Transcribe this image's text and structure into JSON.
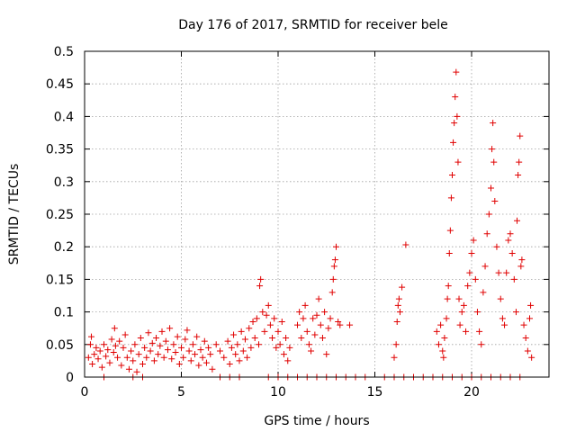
{
  "chart_data": {
    "type": "scatter",
    "title": "Day 176 of 2017, SRMTID for receiver bele",
    "xlabel": "GPS time / hours",
    "ylabel": "SRMTID / TECUs",
    "xlim": [
      0,
      24
    ],
    "ylim": [
      0,
      0.5
    ],
    "x_ticks": [
      0,
      5,
      10,
      15,
      20
    ],
    "y_ticks": [
      0,
      0.05,
      0.1,
      0.15,
      0.2,
      0.25,
      0.3,
      0.35,
      0.4,
      0.45,
      0.5
    ],
    "x_tick_labels": [
      "0",
      "5",
      "10",
      "15",
      "20"
    ],
    "y_tick_labels": [
      "0",
      "0.05",
      "0.1",
      "0.15",
      "0.2",
      "0.25",
      "0.3",
      "0.35",
      "0.4",
      "0.45",
      "0.5"
    ],
    "grid": true,
    "marker": "+",
    "color": "#e00000",
    "series": [
      {
        "name": "SRMTID",
        "points": [
          [
            0.2,
            0.03
          ],
          [
            0.3,
            0.05
          ],
          [
            0.35,
            0.062
          ],
          [
            0.4,
            0.02
          ],
          [
            0.5,
            0.035
          ],
          [
            0.6,
            0.045
          ],
          [
            0.7,
            0.028
          ],
          [
            0.8,
            0.04
          ],
          [
            0.9,
            0.015
          ],
          [
            1.0,
            0.05
          ],
          [
            1.1,
            0.032
          ],
          [
            1.2,
            0.042
          ],
          [
            1.3,
            0.022
          ],
          [
            1.4,
            0.058
          ],
          [
            1.5,
            0.038
          ],
          [
            1.55,
            0.075
          ],
          [
            1.6,
            0.048
          ],
          [
            1.7,
            0.03
          ],
          [
            1.8,
            0.055
          ],
          [
            1.9,
            0.018
          ],
          [
            2.0,
            0.045
          ],
          [
            2.1,
            0.065
          ],
          [
            2.2,
            0.03
          ],
          [
            2.3,
            0.012
          ],
          [
            2.4,
            0.04
          ],
          [
            2.5,
            0.025
          ],
          [
            2.6,
            0.05
          ],
          [
            2.7,
            0.008
          ],
          [
            2.8,
            0.035
          ],
          [
            2.9,
            0.06
          ],
          [
            3.0,
            0.02
          ],
          [
            3.1,
            0.045
          ],
          [
            3.2,
            0.03
          ],
          [
            3.3,
            0.068
          ],
          [
            3.4,
            0.04
          ],
          [
            3.5,
            0.052
          ],
          [
            3.6,
            0.025
          ],
          [
            3.7,
            0.06
          ],
          [
            3.8,
            0.035
          ],
          [
            3.9,
            0.048
          ],
          [
            4.0,
            0.07
          ],
          [
            4.1,
            0.03
          ],
          [
            4.2,
            0.055
          ],
          [
            4.3,
            0.042
          ],
          [
            4.4,
            0.075
          ],
          [
            4.5,
            0.028
          ],
          [
            4.6,
            0.05
          ],
          [
            4.7,
            0.038
          ],
          [
            4.8,
            0.062
          ],
          [
            4.9,
            0.02
          ],
          [
            5.0,
            0.045
          ],
          [
            5.1,
            0.03
          ],
          [
            5.2,
            0.058
          ],
          [
            5.3,
            0.072
          ],
          [
            5.4,
            0.04
          ],
          [
            5.5,
            0.025
          ],
          [
            5.6,
            0.05
          ],
          [
            5.7,
            0.035
          ],
          [
            5.8,
            0.062
          ],
          [
            5.9,
            0.018
          ],
          [
            6.0,
            0.042
          ],
          [
            6.1,
            0.03
          ],
          [
            6.2,
            0.055
          ],
          [
            6.3,
            0.022
          ],
          [
            6.4,
            0.045
          ],
          [
            6.5,
            0.035
          ],
          [
            6.6,
            0.012
          ],
          [
            6.8,
            0.05
          ],
          [
            7.0,
            0.04
          ],
          [
            7.2,
            0.03
          ],
          [
            7.4,
            0.055
          ],
          [
            7.5,
            0.02
          ],
          [
            7.6,
            0.045
          ],
          [
            7.7,
            0.065
          ],
          [
            7.8,
            0.035
          ],
          [
            7.9,
            0.05
          ],
          [
            8.0,
            0.025
          ],
          [
            8.1,
            0.07
          ],
          [
            8.2,
            0.04
          ],
          [
            8.3,
            0.058
          ],
          [
            8.4,
            0.03
          ],
          [
            8.5,
            0.075
          ],
          [
            8.6,
            0.045
          ],
          [
            8.7,
            0.085
          ],
          [
            8.8,
            0.06
          ],
          [
            8.9,
            0.09
          ],
          [
            9.0,
            0.05
          ],
          [
            9.05,
            0.14
          ],
          [
            9.1,
            0.15
          ],
          [
            9.2,
            0.1
          ],
          [
            9.3,
            0.07
          ],
          [
            9.4,
            0.095
          ],
          [
            9.5,
            0.11
          ],
          [
            9.6,
            0.08
          ],
          [
            9.7,
            0.06
          ],
          [
            9.8,
            0.09
          ],
          [
            9.9,
            0.045
          ],
          [
            10.0,
            0.07
          ],
          [
            10.1,
            0.05
          ],
          [
            10.2,
            0.085
          ],
          [
            10.3,
            0.035
          ],
          [
            10.4,
            0.06
          ],
          [
            10.5,
            0.025
          ],
          [
            10.6,
            0.045
          ],
          [
            11.0,
            0.08
          ],
          [
            11.1,
            0.1
          ],
          [
            11.2,
            0.06
          ],
          [
            11.3,
            0.09
          ],
          [
            11.4,
            0.11
          ],
          [
            11.5,
            0.07
          ],
          [
            11.6,
            0.05
          ],
          [
            11.7,
            0.04
          ],
          [
            11.8,
            0.09
          ],
          [
            11.9,
            0.065
          ],
          [
            12.0,
            0.095
          ],
          [
            12.1,
            0.12
          ],
          [
            12.2,
            0.08
          ],
          [
            12.3,
            0.06
          ],
          [
            12.4,
            0.1
          ],
          [
            12.5,
            0.035
          ],
          [
            12.6,
            0.075
          ],
          [
            12.7,
            0.09
          ],
          [
            12.8,
            0.13
          ],
          [
            12.85,
            0.15
          ],
          [
            12.9,
            0.17
          ],
          [
            12.95,
            0.18
          ],
          [
            13.0,
            0.2
          ],
          [
            13.1,
            0.085
          ],
          [
            13.2,
            0.08
          ],
          [
            13.7,
            0.08
          ],
          [
            16.0,
            0.03
          ],
          [
            16.1,
            0.05
          ],
          [
            16.15,
            0.085
          ],
          [
            16.2,
            0.11
          ],
          [
            16.25,
            0.12
          ],
          [
            16.3,
            0.1
          ],
          [
            16.4,
            0.138
          ],
          [
            16.6,
            0.203
          ],
          [
            18.2,
            0.07
          ],
          [
            18.3,
            0.05
          ],
          [
            18.4,
            0.08
          ],
          [
            18.5,
            0.04
          ],
          [
            18.55,
            0.03
          ],
          [
            18.6,
            0.06
          ],
          [
            18.7,
            0.09
          ],
          [
            18.75,
            0.12
          ],
          [
            18.8,
            0.14
          ],
          [
            18.85,
            0.19
          ],
          [
            18.9,
            0.225
          ],
          [
            18.95,
            0.275
          ],
          [
            19.0,
            0.31
          ],
          [
            19.05,
            0.36
          ],
          [
            19.1,
            0.39
          ],
          [
            19.15,
            0.43
          ],
          [
            19.2,
            0.468
          ],
          [
            19.25,
            0.4
          ],
          [
            19.3,
            0.33
          ],
          [
            19.35,
            0.12
          ],
          [
            19.4,
            0.08
          ],
          [
            19.5,
            0.1
          ],
          [
            19.6,
            0.11
          ],
          [
            19.7,
            0.07
          ],
          [
            19.8,
            0.14
          ],
          [
            19.9,
            0.16
          ],
          [
            20.0,
            0.19
          ],
          [
            20.1,
            0.21
          ],
          [
            20.2,
            0.15
          ],
          [
            20.3,
            0.1
          ],
          [
            20.4,
            0.07
          ],
          [
            20.5,
            0.05
          ],
          [
            20.6,
            0.13
          ],
          [
            20.7,
            0.17
          ],
          [
            20.8,
            0.22
          ],
          [
            20.9,
            0.25
          ],
          [
            21.0,
            0.29
          ],
          [
            21.05,
            0.35
          ],
          [
            21.1,
            0.39
          ],
          [
            21.15,
            0.33
          ],
          [
            21.2,
            0.27
          ],
          [
            21.3,
            0.2
          ],
          [
            21.4,
            0.16
          ],
          [
            21.5,
            0.12
          ],
          [
            21.6,
            0.09
          ],
          [
            21.7,
            0.08
          ],
          [
            21.8,
            0.16
          ],
          [
            21.9,
            0.21
          ],
          [
            22.0,
            0.22
          ],
          [
            22.1,
            0.19
          ],
          [
            22.2,
            0.15
          ],
          [
            22.3,
            0.1
          ],
          [
            22.35,
            0.24
          ],
          [
            22.4,
            0.31
          ],
          [
            22.45,
            0.33
          ],
          [
            22.5,
            0.37
          ],
          [
            22.55,
            0.17
          ],
          [
            22.6,
            0.18
          ],
          [
            22.7,
            0.08
          ],
          [
            22.8,
            0.06
          ],
          [
            22.9,
            0.04
          ],
          [
            23.0,
            0.09
          ],
          [
            23.05,
            0.11
          ],
          [
            23.1,
            0.03
          ],
          [
            1.0,
            0.0
          ],
          [
            2.5,
            0.0
          ],
          [
            3.0,
            0.0
          ],
          [
            7.0,
            0.0
          ],
          [
            7.5,
            0.0
          ],
          [
            8.0,
            0.0
          ],
          [
            9.5,
            0.0
          ],
          [
            10.0,
            0.0
          ],
          [
            10.5,
            0.0
          ],
          [
            11.0,
            0.0
          ],
          [
            11.5,
            0.0
          ],
          [
            12.0,
            0.0
          ],
          [
            12.5,
            0.0
          ],
          [
            13.0,
            0.0
          ],
          [
            13.5,
            0.0
          ],
          [
            14.0,
            0.0
          ],
          [
            14.5,
            0.0
          ],
          [
            15.5,
            0.0
          ],
          [
            16.0,
            0.0
          ],
          [
            16.5,
            0.0
          ],
          [
            17.0,
            0.0
          ],
          [
            17.5,
            0.0
          ],
          [
            18.0,
            0.0
          ],
          [
            18.5,
            0.0
          ],
          [
            19.0,
            0.0
          ],
          [
            19.5,
            0.0
          ],
          [
            20.0,
            0.0
          ],
          [
            20.5,
            0.0
          ],
          [
            21.0,
            0.0
          ],
          [
            21.5,
            0.0
          ],
          [
            22.0,
            0.0
          ],
          [
            22.5,
            0.0
          ]
        ]
      }
    ]
  }
}
